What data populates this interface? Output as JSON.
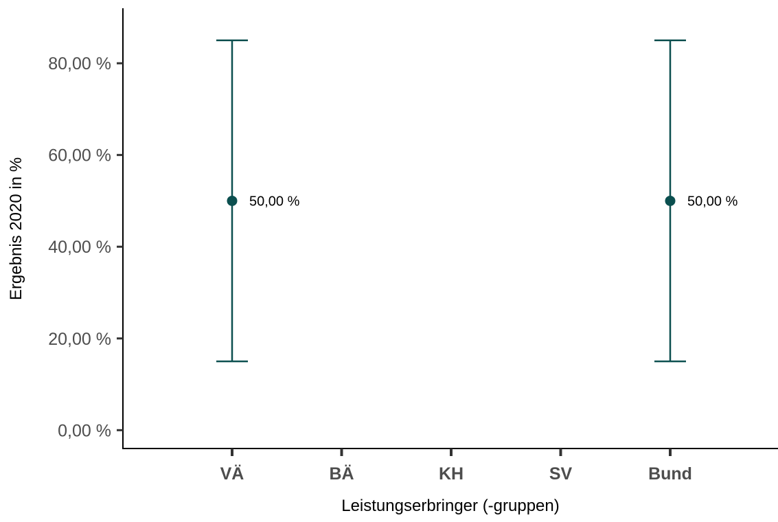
{
  "chart_data": {
    "type": "scatter",
    "title": "",
    "xlabel": "Leistungserbringer (-gruppen)",
    "ylabel": "Ergebnis 2020 in %",
    "categories": [
      "VÄ",
      "BÄ",
      "KH",
      "SV",
      "Bund"
    ],
    "ylim": [
      -4,
      92
    ],
    "yticks": [
      0,
      20,
      40,
      60,
      80
    ],
    "ytick_labels": [
      "0,00 %",
      "20,00 %",
      "40,00 %",
      "60,00 %",
      "80,00 %"
    ],
    "grid": false,
    "legend": "none",
    "points": [
      {
        "category": "VÄ",
        "value": 50,
        "lower": 15,
        "upper": 85,
        "label": "50,00 %"
      },
      {
        "category": "Bund",
        "value": 50,
        "lower": 15,
        "upper": 85,
        "label": "50,00 %"
      }
    ],
    "colors": {
      "series": "#0b4f4f",
      "axis": "#000000",
      "tick": "#333333",
      "tick_label": "#4d4d4d"
    }
  }
}
